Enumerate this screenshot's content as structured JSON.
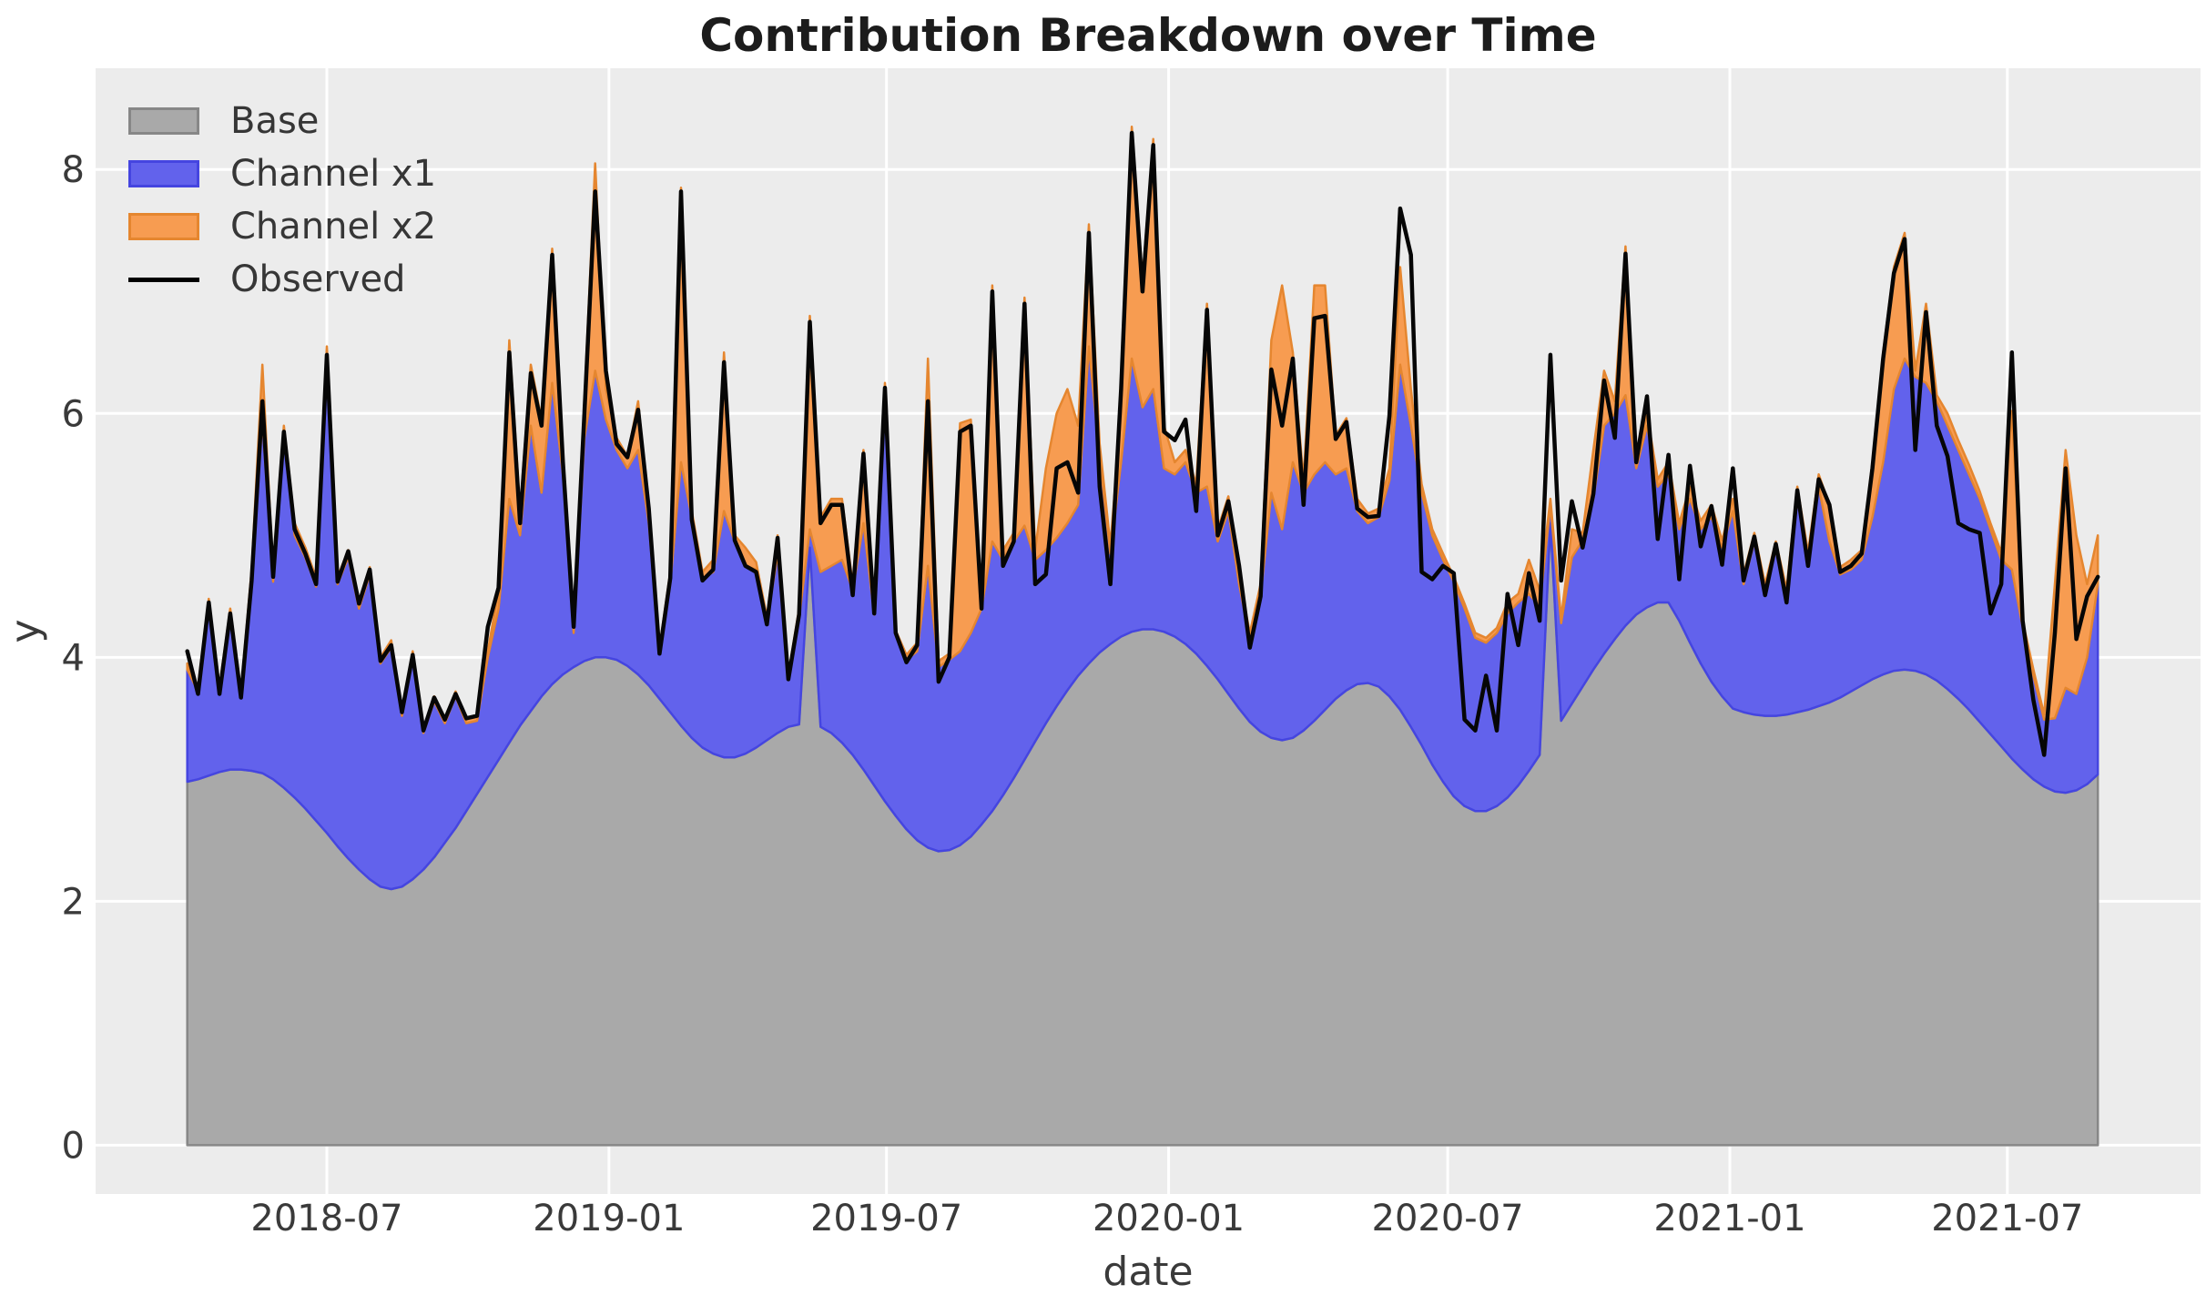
{
  "chart_data": {
    "type": "area",
    "stacked": true,
    "title": "Contribution Breakdown over Time",
    "xlabel": "date",
    "ylabel": "y",
    "grid": true,
    "legend_position": "upper-left",
    "x_start_date": "2018-04-01",
    "x_step_days": 7,
    "n_points": 179,
    "xlim_days": [
      -59.8,
      1313.0
    ],
    "ylim": [
      -0.4,
      8.83
    ],
    "yticks": [
      0,
      2,
      4,
      6,
      8
    ],
    "ytick_labels": [
      "0",
      "2",
      "4",
      "6",
      "8"
    ],
    "xticks": [
      {
        "date": "2018-07-01",
        "label": "2018-07"
      },
      {
        "date": "2019-01-01",
        "label": "2019-01"
      },
      {
        "date": "2019-07-01",
        "label": "2019-07"
      },
      {
        "date": "2020-01-01",
        "label": "2020-01"
      },
      {
        "date": "2020-07-01",
        "label": "2020-07"
      },
      {
        "date": "2021-01-01",
        "label": "2021-01"
      },
      {
        "date": "2021-07-01",
        "label": "2021-07"
      }
    ],
    "colors": {
      "plot_bg": "#ececec",
      "grid": "#ffffff",
      "tick_text": "#3a3a3a",
      "title_text": "#1c1c1c"
    },
    "series": [
      {
        "name": "Base",
        "fill": "#a9a9a9",
        "edge": "#878787",
        "values": [
          2.98,
          3.0,
          3.03,
          3.06,
          3.08,
          3.08,
          3.07,
          3.05,
          3.0,
          2.93,
          2.85,
          2.76,
          2.66,
          2.56,
          2.45,
          2.35,
          2.26,
          2.18,
          2.12,
          2.1,
          2.12,
          2.18,
          2.26,
          2.36,
          2.48,
          2.6,
          2.74,
          2.88,
          3.02,
          3.16,
          3.3,
          3.44,
          3.56,
          3.68,
          3.78,
          3.86,
          3.92,
          3.97,
          4.0,
          4.0,
          3.98,
          3.93,
          3.86,
          3.77,
          3.66,
          3.55,
          3.44,
          3.34,
          3.26,
          3.21,
          3.18,
          3.18,
          3.21,
          3.26,
          3.32,
          3.38,
          3.43,
          3.45,
          4.9,
          3.43,
          3.38,
          3.3,
          3.2,
          3.08,
          2.95,
          2.82,
          2.7,
          2.59,
          2.5,
          2.44,
          2.41,
          2.42,
          2.46,
          2.53,
          2.63,
          2.74,
          2.87,
          3.01,
          3.16,
          3.31,
          3.46,
          3.6,
          3.73,
          3.85,
          3.95,
          4.04,
          4.11,
          4.17,
          4.21,
          4.23,
          4.23,
          4.21,
          4.17,
          4.11,
          4.03,
          3.93,
          3.82,
          3.7,
          3.58,
          3.47,
          3.39,
          3.34,
          3.32,
          3.34,
          3.4,
          3.48,
          3.57,
          3.66,
          3.73,
          3.78,
          3.79,
          3.76,
          3.68,
          3.57,
          3.43,
          3.28,
          3.12,
          2.98,
          2.86,
          2.78,
          2.74,
          2.74,
          2.78,
          2.85,
          2.95,
          3.07,
          3.2,
          5.1,
          3.48,
          3.62,
          3.76,
          3.9,
          4.03,
          4.15,
          4.26,
          4.35,
          4.41,
          4.45,
          4.45,
          4.3,
          4.12,
          3.95,
          3.8,
          3.68,
          3.58,
          3.55,
          3.53,
          3.52,
          3.52,
          3.53,
          3.55,
          3.57,
          3.6,
          3.63,
          3.67,
          3.72,
          3.77,
          3.82,
          3.86,
          3.89,
          3.9,
          3.89,
          3.86,
          3.81,
          3.74,
          3.66,
          3.57,
          3.47,
          3.37,
          3.27,
          3.17,
          3.08,
          3.0,
          2.94,
          2.9,
          2.89,
          2.91,
          2.96,
          3.04
        ]
      },
      {
        "name": "Channel x1",
        "fill": "#6262ec",
        "edge": "#4545e0",
        "values": [
          0.92,
          0.72,
          1.39,
          0.66,
          1.24,
          0.6,
          1.53,
          2.9,
          1.62,
          2.87,
          2.15,
          2.06,
          1.92,
          3.84,
          2.15,
          2.47,
          2.14,
          2.5,
          1.83,
          1.98,
          1.4,
          1.82,
          1.12,
          1.28,
          0.98,
          1.08,
          0.72,
          0.6,
          0.98,
          1.24,
          2.0,
          1.56,
          2.34,
          1.67,
          2.47,
          1.64,
          0.28,
          1.83,
          2.35,
          1.95,
          1.72,
          1.62,
          1.84,
          1.33,
          0.39,
          1.05,
          2.16,
          1.81,
          1.39,
          1.49,
          2.02,
          1.77,
          1.54,
          1.46,
          0.96,
          1.47,
          0.4,
          0.87,
          0.15,
          1.27,
          1.37,
          1.5,
          1.35,
          2.02,
          1.4,
          3.33,
          1.48,
          1.39,
          1.55,
          2.31,
          1.51,
          1.56,
          1.59,
          1.67,
          1.77,
          2.21,
          1.93,
          1.94,
          1.92,
          1.49,
          1.42,
          1.38,
          1.37,
          1.4,
          2.6,
          1.61,
          0.74,
          1.43,
          2.24,
          1.82,
          1.97,
          1.34,
          1.33,
          1.49,
          1.32,
          1.47,
          1.13,
          1.5,
          1.02,
          0.68,
          1.11,
          2.01,
          1.73,
          2.26,
          1.95,
          2.02,
          2.03,
          1.84,
          1.82,
          1.42,
          1.31,
          1.39,
          1.77,
          2.83,
          2.47,
          2.07,
          1.88,
          1.82,
          1.76,
          1.62,
          1.42,
          1.38,
          1.42,
          1.51,
          1.5,
          1.45,
          1.22,
          0.15,
          0.8,
          1.2,
          1.2,
          1.4,
          1.87,
          1.85,
          1.89,
          1.2,
          1.49,
          0.95,
          1.05,
          0.75,
          1.18,
          1.1,
          1.35,
          1.22,
          1.62,
          1.05,
          1.42,
          1.03,
          1.36,
          0.97,
          1.75,
          1.23,
          1.8,
          1.32,
          1.01,
          1.0,
          1.03,
          1.33,
          1.74,
          2.31,
          2.55,
          2.41,
          2.39,
          2.29,
          2.16,
          2.04,
          1.93,
          1.83,
          1.68,
          1.53,
          1.55,
          1.17,
          0.85,
          0.55,
          0.6,
          0.86,
          0.79,
          1.04,
          1.56
        ]
      },
      {
        "name": "Channel x2",
        "fill": "#f79c51",
        "edge": "#e5862f",
        "values": [
          0.05,
          0.04,
          0.06,
          0.04,
          0.08,
          0.04,
          0.12,
          0.45,
          0.08,
          0.1,
          0.1,
          0.08,
          0.07,
          0.15,
          0.06,
          0.06,
          0.06,
          0.06,
          0.05,
          0.06,
          0.04,
          0.05,
          0.04,
          0.04,
          0.04,
          0.04,
          0.04,
          0.04,
          0.05,
          0.15,
          1.3,
          0.2,
          0.5,
          0.6,
          1.1,
          0.15,
          0.1,
          0.3,
          1.7,
          0.25,
          0.1,
          0.1,
          0.4,
          0.1,
          0.03,
          0.1,
          2.25,
          0.05,
          0.05,
          0.1,
          1.3,
          0.05,
          0.15,
          0.06,
          0.05,
          0.15,
          0.03,
          0.08,
          1.75,
          0.45,
          0.55,
          0.5,
          0.05,
          0.6,
          0.05,
          0.1,
          0.04,
          0.04,
          0.07,
          1.7,
          0.05,
          0.05,
          1.87,
          1.75,
          0.08,
          2.1,
          0.08,
          0.07,
          1.87,
          0.08,
          0.67,
          1.02,
          1.1,
          0.65,
          1.0,
          0.1,
          0.07,
          0.4,
          1.9,
          1.05,
          2.05,
          0.35,
          0.1,
          0.1,
          0.07,
          1.5,
          0.1,
          0.12,
          0.06,
          0.05,
          0.1,
          1.25,
          2.0,
          0.9,
          0.1,
          1.55,
          1.45,
          0.32,
          0.41,
          0.1,
          0.08,
          0.07,
          0.1,
          0.8,
          0.3,
          0.07,
          0.05,
          0.05,
          0.04,
          0.04,
          0.04,
          0.04,
          0.04,
          0.09,
          0.07,
          0.28,
          0.13,
          0.05,
          0.04,
          0.23,
          0.06,
          0.4,
          0.45,
          0.1,
          1.22,
          0.07,
          0.1,
          0.06,
          0.1,
          0.05,
          0.1,
          0.07,
          0.1,
          0.06,
          0.1,
          0.08,
          0.07,
          0.05,
          0.07,
          0.06,
          0.1,
          0.06,
          0.1,
          0.3,
          0.06,
          0.08,
          0.08,
          0.45,
          0.9,
          1.0,
          1.03,
          0.05,
          0.65,
          0.05,
          0.1,
          0.08,
          0.08,
          0.06,
          0.05,
          0.06,
          1.3,
          0.05,
          0.05,
          0.04,
          1.1,
          1.95,
          1.3,
          0.6,
          0.4
        ]
      }
    ],
    "line_series": {
      "name": "Observed",
      "color": "#060606",
      "values": [
        4.05,
        3.7,
        4.45,
        3.7,
        4.36,
        3.67,
        4.63,
        6.1,
        4.66,
        5.85,
        5.05,
        4.85,
        4.6,
        6.48,
        4.62,
        4.87,
        4.44,
        4.72,
        3.97,
        4.1,
        3.55,
        4.02,
        3.4,
        3.67,
        3.49,
        3.7,
        3.5,
        3.52,
        4.25,
        4.57,
        6.5,
        5.1,
        6.33,
        5.9,
        7.3,
        5.6,
        4.25,
        6.0,
        7.82,
        6.35,
        5.75,
        5.64,
        6.03,
        5.22,
        4.03,
        4.65,
        7.82,
        5.13,
        4.63,
        4.72,
        6.42,
        4.96,
        4.75,
        4.7,
        4.27,
        4.98,
        3.82,
        4.35,
        6.75,
        5.1,
        5.25,
        5.25,
        4.51,
        5.67,
        4.36,
        6.21,
        4.2,
        3.96,
        4.1,
        6.1,
        3.8,
        4.0,
        5.85,
        5.9,
        4.4,
        7.0,
        4.75,
        4.95,
        6.9,
        4.6,
        4.68,
        5.55,
        5.6,
        5.35,
        7.48,
        5.4,
        4.6,
        6.2,
        8.3,
        7.0,
        8.2,
        5.85,
        5.78,
        5.95,
        5.2,
        6.85,
        5.0,
        5.28,
        4.75,
        4.08,
        4.5,
        6.36,
        5.9,
        6.45,
        5.25,
        6.78,
        6.8,
        5.79,
        5.93,
        5.22,
        5.15,
        5.16,
        5.98,
        7.68,
        7.3,
        4.7,
        4.64,
        4.75,
        4.69,
        3.49,
        3.4,
        3.85,
        3.4,
        4.52,
        4.1,
        4.69,
        4.3,
        6.48,
        4.63,
        5.28,
        4.9,
        5.34,
        6.27,
        5.8,
        7.31,
        5.6,
        6.14,
        4.97,
        5.66,
        4.64,
        5.57,
        4.91,
        5.24,
        4.76,
        5.55,
        4.63,
        4.99,
        4.51,
        4.93,
        4.45,
        5.37,
        4.75,
        5.46,
        5.25,
        4.7,
        4.75,
        4.85,
        5.55,
        6.45,
        7.15,
        7.43,
        5.7,
        6.83,
        5.9,
        5.65,
        5.1,
        5.05,
        5.02,
        4.36,
        4.6,
        6.5,
        4.3,
        3.65,
        3.2,
        4.2,
        5.55,
        4.15,
        4.5,
        4.66
      ]
    }
  }
}
